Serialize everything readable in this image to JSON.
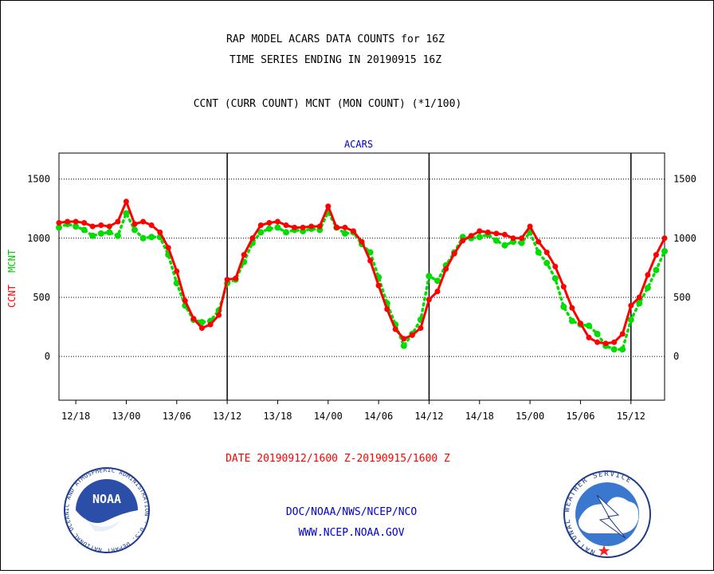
{
  "chart_data": {
    "type": "line",
    "title_lines": [
      "RAP MODEL ACARS DATA COUNTS for 16Z",
      "TIME SERIES ENDING IN 20190915 16Z"
    ],
    "subtitle": "CCNT (CURR COUNT) MCNT (MON COUNT) (*1/100)",
    "panel_label": "ACARS",
    "ylabel_curr": "CCNT",
    "ylabel_mon": "MCNT",
    "date_range": "DATE 20190912/1600 Z-20190915/1600 Z",
    "x_start_hour": 16,
    "x_step_hours": 1,
    "ylim": [
      -370,
      1720
    ],
    "yticks": [
      0,
      500,
      1000,
      1500
    ],
    "yticklabels": [
      "0",
      "500",
      "1000",
      "1500"
    ],
    "xtick_hours": [
      2,
      8,
      14,
      20,
      26,
      32,
      38,
      44,
      50,
      56,
      62,
      68
    ],
    "xticklabels": [
      "12/18",
      "13/00",
      "13/06",
      "13/12",
      "13/18",
      "14/00",
      "14/06",
      "14/12",
      "14/18",
      "15/00",
      "15/06",
      "15/12"
    ],
    "vlines_hours": [
      20,
      44,
      68
    ],
    "grid": true,
    "series": [
      {
        "name": "CCNT",
        "color": "#ff0000",
        "values": [
          1130,
          1140,
          1140,
          1130,
          1100,
          1110,
          1100,
          1140,
          1310,
          1120,
          1140,
          1110,
          1050,
          920,
          720,
          470,
          320,
          240,
          270,
          350,
          650,
          660,
          860,
          1000,
          1110,
          1130,
          1140,
          1110,
          1090,
          1090,
          1100,
          1100,
          1270,
          1090,
          1090,
          1060,
          970,
          810,
          600,
          400,
          230,
          150,
          180,
          240,
          480,
          550,
          740,
          870,
          980,
          1020,
          1060,
          1050,
          1040,
          1030,
          1000,
          1000,
          1100,
          970,
          880,
          760,
          590,
          410,
          280,
          160,
          120,
          110,
          120,
          190,
          430,
          500,
          690,
          860,
          1000
        ]
      },
      {
        "name": "MCNT",
        "color": "#00dd00",
        "values": [
          1090,
          1120,
          1100,
          1070,
          1020,
          1040,
          1050,
          1020,
          1210,
          1070,
          1000,
          1010,
          1010,
          860,
          620,
          430,
          310,
          290,
          300,
          390,
          620,
          650,
          800,
          960,
          1050,
          1080,
          1090,
          1050,
          1070,
          1060,
          1080,
          1070,
          1220,
          1090,
          1040,
          1050,
          950,
          880,
          670,
          450,
          270,
          90,
          190,
          310,
          680,
          640,
          770,
          880,
          1010,
          1000,
          1010,
          1030,
          980,
          940,
          970,
          960,
          1050,
          880,
          790,
          660,
          420,
          300,
          270,
          260,
          190,
          90,
          60,
          60,
          310,
          450,
          580,
          730,
          890
        ]
      }
    ]
  },
  "footer": {
    "org_line": "DOC/NOAA/NWS/NCEP/NCO",
    "url_line": "WWW.NCEP.NOAA.GOV",
    "noaa_logo_text": "NOAA",
    "noaa_ring_text": "NATIONAL OCEANIC AND ATMOSPHERIC ADMINISTRATION · U.S. DEPARTMENT OF COMMERCE",
    "nws_ring_text": "NATIONAL WEATHER SERVICE"
  }
}
